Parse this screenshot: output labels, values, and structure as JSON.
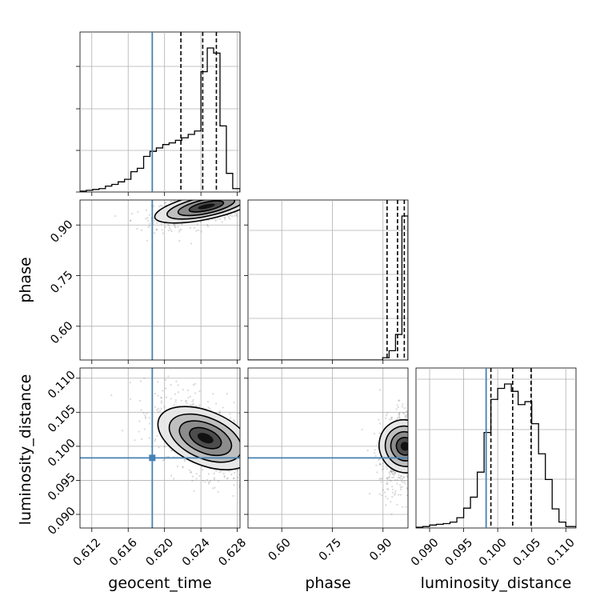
{
  "chart_data": {
    "type": "corner",
    "colors": {
      "truth": "#4682b4",
      "line": "#000000",
      "grid": "#b0b0b0",
      "scatter": "#777777"
    },
    "params": [
      {
        "name": "geocent_time",
        "xlabel": "geocent_time",
        "range": [
          0.6107,
          0.6283
        ],
        "ticks": [
          0.612,
          0.616,
          0.62,
          0.624,
          0.628
        ],
        "tick_labels": [
          "0.612",
          "0.616",
          "0.620",
          "0.624",
          "0.628"
        ],
        "truth": 0.61865,
        "quantiles": [
          0.6218,
          0.6242,
          0.6257
        ],
        "histogram": {
          "edges": [
            0.6107,
            0.6114,
            0.6121,
            0.6128,
            0.6135,
            0.6142,
            0.6149,
            0.6156,
            0.6163,
            0.617,
            0.6177,
            0.6184,
            0.6191,
            0.6198,
            0.6205,
            0.6212,
            0.6219,
            0.6226,
            0.6233,
            0.624,
            0.6247,
            0.6254,
            0.6261,
            0.6268,
            0.6275,
            0.6283
          ],
          "counts": [
            1,
            2,
            3,
            4,
            7,
            9,
            12,
            15,
            24,
            28,
            42,
            48,
            52,
            56,
            58,
            61,
            64,
            68,
            72,
            142,
            170,
            164,
            78,
            22,
            4
          ]
        }
      },
      {
        "name": "phase",
        "xlabel": "phase",
        "ylabel": "phase",
        "range": [
          0.5,
          0.974
        ],
        "ticks": [
          0.6,
          0.75,
          0.9
        ],
        "tick_labels": [
          "0.60",
          "0.75",
          "0.90"
        ],
        "truth": null,
        "quantiles": [
          0.912,
          0.943,
          0.963
        ],
        "histogram": {
          "edges": [
            0.5,
            0.519,
            0.538,
            0.557,
            0.576,
            0.595,
            0.614,
            0.633,
            0.652,
            0.671,
            0.69,
            0.709,
            0.728,
            0.747,
            0.766,
            0.785,
            0.804,
            0.823,
            0.842,
            0.861,
            0.88,
            0.899,
            0.918,
            0.937,
            0.956,
            0.974
          ],
          "counts": [
            0,
            0,
            0,
            0,
            0,
            0,
            0,
            0,
            0,
            0,
            0,
            0,
            0,
            0,
            0,
            0,
            0,
            0,
            0,
            0,
            0,
            1,
            4,
            11,
            62
          ]
        }
      },
      {
        "name": "luminosity_distance",
        "xlabel": "luminosity_distance",
        "ylabel": "luminosity_distance",
        "range": [
          0.088,
          0.1115
        ],
        "ticks": [
          0.09,
          0.095,
          0.1,
          0.105,
          0.11
        ],
        "tick_labels": [
          "0.090",
          "0.095",
          "0.100",
          "0.105",
          "0.110"
        ],
        "truth": 0.0983,
        "quantiles": [
          0.099,
          0.1022,
          0.1049
        ],
        "histogram": {
          "edges": [
            0.088,
            0.089,
            0.09,
            0.091,
            0.092,
            0.093,
            0.094,
            0.095,
            0.096,
            0.097,
            0.098,
            0.099,
            0.1,
            0.101,
            0.102,
            0.103,
            0.104,
            0.105,
            0.106,
            0.107,
            0.108,
            0.109,
            0.11,
            0.1115
          ],
          "counts": [
            1,
            2,
            4,
            5,
            6,
            8,
            14,
            27,
            42,
            76,
            130,
            175,
            190,
            196,
            186,
            168,
            172,
            142,
            101,
            66,
            26,
            8,
            2
          ]
        }
      }
    ],
    "pairs": [
      {
        "x_param": 0,
        "y_param": 1,
        "peak": [
          0.6246,
          0.955
        ],
        "std": [
          0.0023,
          0.024
        ],
        "corr": 0.55,
        "truth_point": null
      },
      {
        "x_param": 0,
        "y_param": 2,
        "peak": [
          0.6245,
          0.1012
        ],
        "std": [
          0.0022,
          0.0025
        ],
        "corr": -0.5,
        "truth_point": [
          0.61865,
          0.0983
        ]
      },
      {
        "x_param": 1,
        "y_param": 2,
        "peak": [
          0.965,
          0.1
        ],
        "std": [
          0.03,
          0.0025
        ],
        "corr": 0.35,
        "truth_point": [
          null,
          0.0983
        ]
      }
    ]
  }
}
